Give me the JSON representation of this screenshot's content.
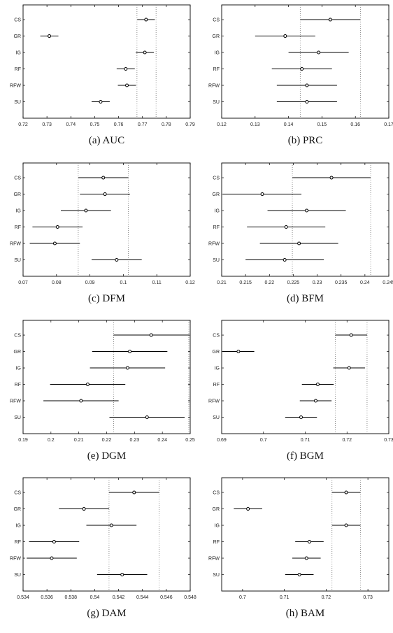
{
  "chart_data": [
    {
      "type": "scatter",
      "caption": "(a) AUC",
      "categories": [
        "CS",
        "GR",
        "IG",
        "RF",
        "RFW",
        "SU"
      ],
      "means": [
        0.7715,
        0.731,
        0.771,
        0.763,
        0.7635,
        0.7525
      ],
      "lower": [
        0.7678,
        0.7272,
        0.7672,
        0.7592,
        0.7597,
        0.7487
      ],
      "upper": [
        0.7752,
        0.7348,
        0.7748,
        0.7668,
        0.7673,
        0.7563
      ],
      "reference_lines": [
        0.7677,
        0.7757
      ],
      "xlim": [
        0.72,
        0.79
      ],
      "xticks": [
        "0.72",
        "0.73",
        "0.74",
        "0.75",
        "0.76",
        "0.77",
        "0.78",
        "0.79"
      ]
    },
    {
      "type": "scatter",
      "caption": "(b) PRC",
      "categories": [
        "CS",
        "GR",
        "IG",
        "RF",
        "RFW",
        "SU"
      ],
      "means": [
        0.1525,
        0.139,
        0.149,
        0.144,
        0.1455,
        0.1455
      ],
      "lower": [
        0.1435,
        0.13,
        0.14,
        0.135,
        0.1365,
        0.1365
      ],
      "upper": [
        0.1615,
        0.148,
        0.158,
        0.153,
        0.1545,
        0.1545
      ],
      "reference_lines": [
        0.1435,
        0.1615
      ],
      "xlim": [
        0.12,
        0.17
      ],
      "xticks": [
        "0.12",
        "0.13",
        "0.14",
        "0.15",
        "0.16",
        "0.17"
      ]
    },
    {
      "type": "scatter",
      "caption": "(c) DFM",
      "categories": [
        "CS",
        "GR",
        "IG",
        "RF",
        "RFW",
        "SU"
      ],
      "means": [
        0.094,
        0.0945,
        0.0888,
        0.0803,
        0.0795,
        0.098
      ],
      "lower": [
        0.0865,
        0.087,
        0.0813,
        0.0728,
        0.072,
        0.0905
      ],
      "upper": [
        0.1015,
        0.102,
        0.0963,
        0.0878,
        0.087,
        0.1055
      ],
      "reference_lines": [
        0.0865,
        0.1015
      ],
      "xlim": [
        0.07,
        0.12
      ],
      "xticks": [
        "0.07",
        "0.08",
        "0.09",
        "0.1",
        "0.11",
        "0.12"
      ]
    },
    {
      "type": "scatter",
      "caption": "(d) BFM",
      "categories": [
        "CS",
        "GR",
        "IG",
        "RF",
        "RFW",
        "SU"
      ],
      "means": [
        0.233,
        0.2185,
        0.2278,
        0.2235,
        0.2262,
        0.2232
      ],
      "lower": [
        0.2248,
        0.2103,
        0.2196,
        0.2153,
        0.218,
        0.215
      ],
      "upper": [
        0.2412,
        0.2267,
        0.236,
        0.2317,
        0.2344,
        0.2314
      ],
      "reference_lines": [
        0.2248,
        0.2412
      ],
      "xlim": [
        0.21,
        0.245
      ],
      "xticks": [
        "0.21",
        "0.215",
        "0.22",
        "0.225",
        "0.23",
        "0.235",
        "0.24",
        "0.245"
      ]
    },
    {
      "type": "scatter",
      "caption": "(e) DGM",
      "categories": [
        "CS",
        "GR",
        "IG",
        "RF",
        "RFW",
        "SU"
      ],
      "means": [
        0.236,
        0.2283,
        0.2275,
        0.2132,
        0.2108,
        0.2345
      ],
      "lower": [
        0.2225,
        0.2148,
        0.214,
        0.1997,
        0.1973,
        0.221
      ],
      "upper": [
        0.2495,
        0.2418,
        0.241,
        0.2267,
        0.2243,
        0.248
      ],
      "reference_lines": [
        0.2225,
        0.2495
      ],
      "xlim": [
        0.19,
        0.25
      ],
      "xticks": [
        "0.19",
        "0.2",
        "0.21",
        "0.22",
        "0.23",
        "0.24",
        "0.25"
      ]
    },
    {
      "type": "scatter",
      "caption": "(f) BGM",
      "categories": [
        "CS",
        "GR",
        "IG",
        "RF",
        "RFW",
        "SU"
      ],
      "means": [
        0.721,
        0.694,
        0.7205,
        0.713,
        0.7125,
        0.709
      ],
      "lower": [
        0.7172,
        0.6902,
        0.7167,
        0.7092,
        0.7087,
        0.7052
      ],
      "upper": [
        0.7248,
        0.6978,
        0.7243,
        0.7168,
        0.7163,
        0.7128
      ],
      "reference_lines": [
        0.7172,
        0.7248
      ],
      "xlim": [
        0.69,
        0.73
      ],
      "xticks": [
        "0.69",
        "0.7",
        "0.71",
        "0.72",
        "0.73"
      ]
    },
    {
      "type": "scatter",
      "caption": "(g) DAM",
      "categories": [
        "CS",
        "GR",
        "IG",
        "RF",
        "RFW",
        "SU"
      ],
      "means": [
        0.5433,
        0.5391,
        0.5414,
        0.5366,
        0.5364,
        0.5423
      ],
      "lower": [
        0.5412,
        0.537,
        0.5393,
        0.5345,
        0.5343,
        0.5402
      ],
      "upper": [
        0.5454,
        0.5412,
        0.5435,
        0.5387,
        0.5385,
        0.5444
      ],
      "reference_lines": [
        0.5412,
        0.5454
      ],
      "xlim": [
        0.534,
        0.548
      ],
      "xticks": [
        "0.534",
        "0.536",
        "0.538",
        "0.54",
        "0.542",
        "0.544",
        "0.546",
        "0.548"
      ]
    },
    {
      "type": "scatter",
      "caption": "(h) BAM",
      "categories": [
        "CS",
        "GR",
        "IG",
        "RF",
        "RFW",
        "SU"
      ],
      "means": [
        0.7248,
        0.7013,
        0.7248,
        0.716,
        0.7153,
        0.7136
      ],
      "lower": [
        0.7214,
        0.6979,
        0.7214,
        0.7126,
        0.7119,
        0.7102
      ],
      "upper": [
        0.7282,
        0.7047,
        0.7282,
        0.7194,
        0.7187,
        0.717
      ],
      "reference_lines": [
        0.7214,
        0.7282
      ],
      "xlim": [
        0.695,
        0.735
      ],
      "xticks": [
        "0.7",
        "0.71",
        "0.72",
        "0.73"
      ],
      "xtick_values": [
        0.7,
        0.71,
        0.72,
        0.73
      ]
    }
  ]
}
